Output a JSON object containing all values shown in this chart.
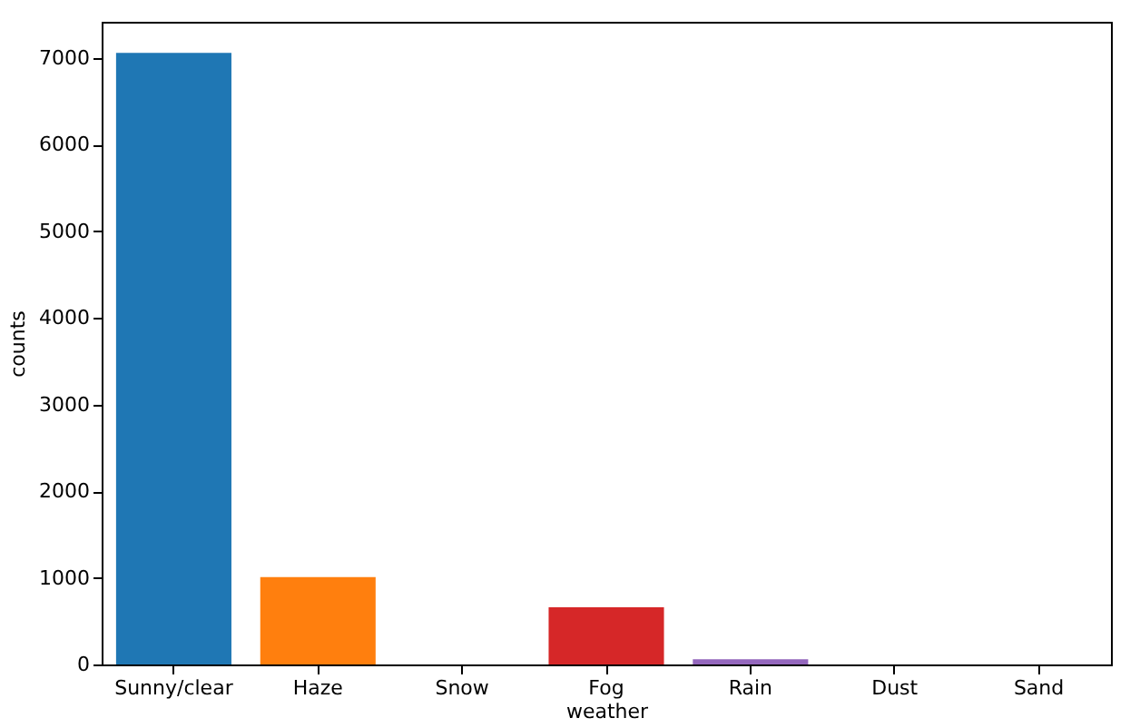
{
  "chart_data": {
    "type": "bar",
    "xlabel": "weather",
    "ylabel": "counts",
    "categories": [
      "Sunny/clear",
      "Haze",
      "Snow",
      "Fog",
      "Rain",
      "Dust",
      "Sand"
    ],
    "values": [
      7060,
      1010,
      0,
      660,
      60,
      0,
      0
    ],
    "colors": [
      "#1f77b4",
      "#ff7f0e",
      "#2ca02c",
      "#d62728",
      "#9467bd",
      "#8c564b",
      "#e377c2"
    ],
    "ylim": [
      0,
      7420
    ],
    "yticks": [
      0,
      1000,
      2000,
      3000,
      4000,
      5000,
      6000,
      7000
    ],
    "grid": false,
    "legend": false
  }
}
